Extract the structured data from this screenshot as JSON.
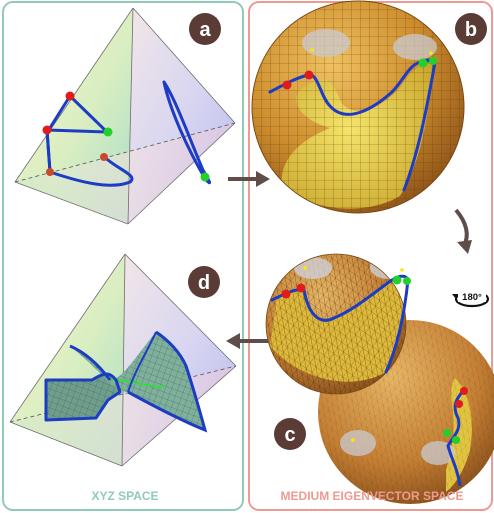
{
  "panels": {
    "left": {
      "caption": "XYZ SPACE"
    },
    "right": {
      "caption": "MEDIUM EIGENVECTOR SPACE"
    }
  },
  "badges": {
    "a": "a",
    "b": "b",
    "c": "c",
    "d": "d"
  },
  "rotation_label": "180°",
  "colors": {
    "left_frame": "#8fcbb5",
    "right_frame": "#ef9a90",
    "badge_fill": "#5a3b36",
    "arrow": "#5f4d4a",
    "curve": "#1d3cc4",
    "sphere_base": "#d8a23a",
    "sphere_patch": "#e8cf3a",
    "endpoint_red": "#e01b1b",
    "endpoint_green": "#22d02a"
  }
}
